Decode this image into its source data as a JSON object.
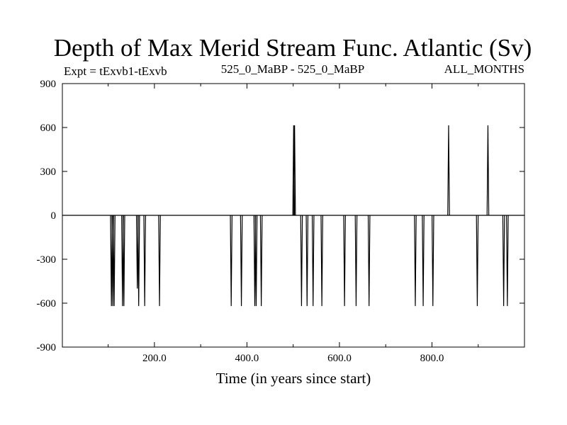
{
  "chart_data": {
    "type": "line",
    "title": "Depth of Max Merid Stream Func. Atlantic (Sv)",
    "subtitle_left": "Expt = tExvb1-tExvb",
    "subtitle_center": "525_0_MaBP - 525_0_MaBP",
    "subtitle_right": "ALL_MONTHS",
    "xlabel": "Time (in years since start)",
    "ylabel": "",
    "xlim": [
      1,
      1000
    ],
    "ylim": [
      -900,
      900
    ],
    "x_ticks": [
      200,
      400,
      600,
      800
    ],
    "x_tick_labels": [
      "200.0",
      "400.0",
      "600.0",
      "800.0"
    ],
    "y_ticks": [
      -900,
      -600,
      -300,
      0,
      300,
      600,
      900
    ],
    "y_tick_labels": [
      "-900",
      "-600",
      "-300",
      "0",
      "300",
      "600",
      "900"
    ],
    "grid": false,
    "baseline": 0,
    "spikes": [
      {
        "x": 107,
        "y": -620
      },
      {
        "x": 110,
        "y": -620
      },
      {
        "x": 113,
        "y": -620
      },
      {
        "x": 131,
        "y": -620
      },
      {
        "x": 134,
        "y": -620
      },
      {
        "x": 163,
        "y": -500
      },
      {
        "x": 166,
        "y": -620
      },
      {
        "x": 179,
        "y": -620
      },
      {
        "x": 211,
        "y": -620
      },
      {
        "x": 366,
        "y": -620
      },
      {
        "x": 388,
        "y": -620
      },
      {
        "x": 417,
        "y": -620
      },
      {
        "x": 420,
        "y": -620
      },
      {
        "x": 431,
        "y": -620
      },
      {
        "x": 501,
        "y": 615
      },
      {
        "x": 503,
        "y": 615
      },
      {
        "x": 518,
        "y": -620
      },
      {
        "x": 530,
        "y": -620
      },
      {
        "x": 543,
        "y": -620
      },
      {
        "x": 562,
        "y": -620
      },
      {
        "x": 611,
        "y": -620
      },
      {
        "x": 636,
        "y": -620
      },
      {
        "x": 664,
        "y": -620
      },
      {
        "x": 764,
        "y": -620
      },
      {
        "x": 781,
        "y": -620
      },
      {
        "x": 802,
        "y": -620
      },
      {
        "x": 836,
        "y": 615
      },
      {
        "x": 898,
        "y": -620
      },
      {
        "x": 921,
        "y": 615
      },
      {
        "x": 955,
        "y": -620
      },
      {
        "x": 963,
        "y": -620
      }
    ]
  }
}
